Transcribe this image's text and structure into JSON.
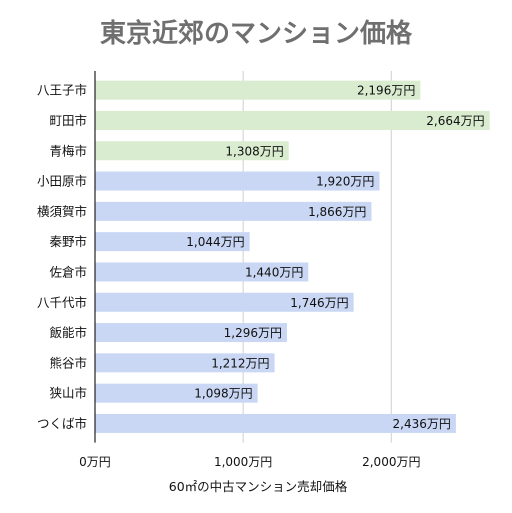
{
  "chart_data": {
    "type": "bar",
    "orientation": "horizontal",
    "title": "東京近郊のマンション価格",
    "xlabel": "60㎡の中古マンション売却価格",
    "ylabel": "",
    "categories": [
      "八王子市",
      "町田市",
      "青梅市",
      "小田原市",
      "横須賀市",
      "秦野市",
      "佐倉市",
      "八千代市",
      "飯能市",
      "熊谷市",
      "狭山市",
      "つくば市"
    ],
    "values": [
      2196,
      2664,
      1308,
      1920,
      1866,
      1044,
      1440,
      1746,
      1296,
      1212,
      1098,
      2436
    ],
    "value_labels": [
      "2,196万円",
      "2,664万円",
      "1,308万円",
      "1,920万円",
      "1,866万円",
      "1,044万円",
      "1,440万円",
      "1,746万円",
      "1,296万円",
      "1,212万円",
      "1,098万円",
      "2,436万円"
    ],
    "bar_colors": [
      "#d9ecd0",
      "#d9ecd0",
      "#d9ecd0",
      "#c9d7f4",
      "#c9d7f4",
      "#c9d7f4",
      "#c9d7f4",
      "#c9d7f4",
      "#c9d7f4",
      "#c9d7f4",
      "#c9d7f4",
      "#c9d7f4"
    ],
    "xlim": [
      0,
      2700
    ],
    "xticks": [
      0,
      1000,
      2000
    ],
    "xtick_labels": [
      "0万円",
      "1,000万円",
      "2,000万円"
    ],
    "grid": true
  }
}
